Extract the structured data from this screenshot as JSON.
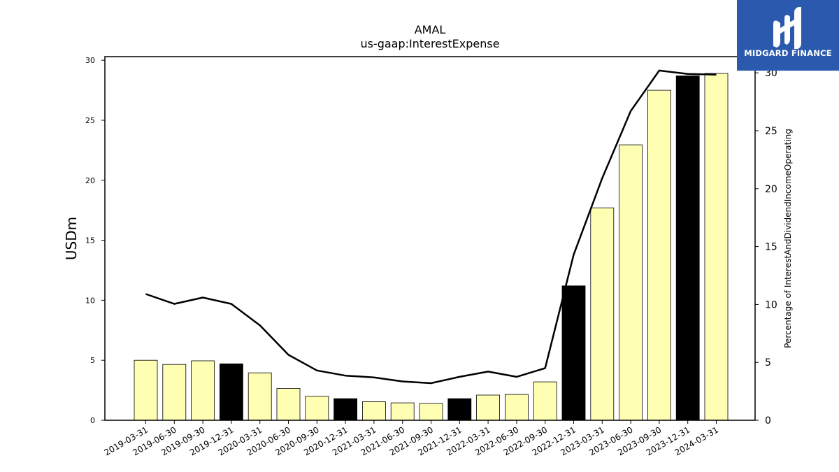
{
  "chart_data": {
    "type": "bar",
    "title": "AMAL",
    "subtitle": "us-gaap:InterestExpense",
    "ylabel": "USDm",
    "ylabel_right": "Percentage of InterestAndDividendIncomeOperating",
    "ylim": [
      0,
      30.3
    ],
    "ylim_right": [
      0,
      31.4
    ],
    "yticks": [
      0,
      5,
      10,
      15,
      20,
      25,
      30
    ],
    "yticks_right": [
      0,
      5,
      10,
      15,
      20,
      25,
      30
    ],
    "grid": false,
    "categories": [
      "2019-03-31",
      "2019-06-30",
      "2019-09-30",
      "2019-12-31",
      "2020-03-31",
      "2020-06-30",
      "2020-09-30",
      "2020-12-31",
      "2021-03-31",
      "2021-06-30",
      "2021-09-30",
      "2021-12-31",
      "2022-03-31",
      "2022-06-30",
      "2022-09-30",
      "2022-12-31",
      "2023-03-31",
      "2023-06-30",
      "2023-09-30",
      "2023-12-31",
      "2024-03-31"
    ],
    "series": [
      {
        "type": "bar",
        "axis": "left",
        "values": [
          5.0,
          4.65,
          4.95,
          4.7,
          3.95,
          2.65,
          2.0,
          1.8,
          1.55,
          1.45,
          1.4,
          1.8,
          2.1,
          2.15,
          3.2,
          11.2,
          17.7,
          22.95,
          27.5,
          28.7,
          28.9
        ],
        "year_end": [
          false,
          false,
          false,
          true,
          false,
          false,
          false,
          true,
          false,
          false,
          false,
          true,
          false,
          false,
          false,
          true,
          false,
          false,
          false,
          true,
          false
        ]
      },
      {
        "type": "line",
        "axis": "right",
        "values": [
          10.9,
          10.05,
          10.6,
          10.05,
          8.2,
          5.65,
          4.3,
          3.85,
          3.7,
          3.35,
          3.2,
          3.75,
          4.2,
          3.75,
          4.5,
          14.3,
          20.9,
          26.7,
          30.2,
          29.9,
          29.85
        ]
      }
    ],
    "colors": {
      "bar": "#ffffb3",
      "bar_year_end": "#000000",
      "line": "#000000"
    }
  },
  "logo": {
    "text": "MIDGARD FINANCE",
    "background": "#2b59ad"
  }
}
